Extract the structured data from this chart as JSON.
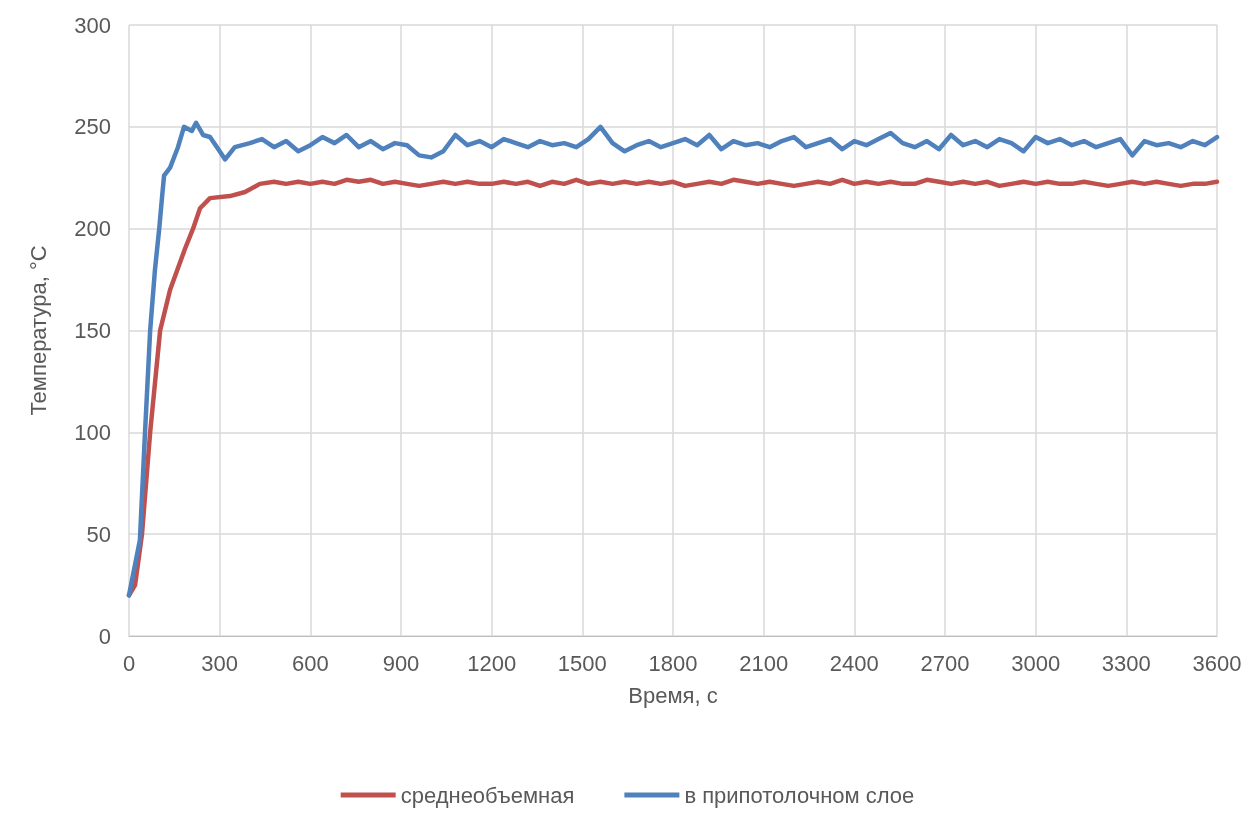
{
  "chart_data": {
    "type": "line",
    "xlabel": "Время, с",
    "ylabel": "Температура, °C",
    "xlim": [
      0,
      3600
    ],
    "xticks": [
      0,
      300,
      600,
      900,
      1200,
      1500,
      1800,
      2100,
      2400,
      2700,
      3000,
      3300,
      3600
    ],
    "ylim": [
      0,
      300
    ],
    "yticks": [
      0,
      50,
      100,
      150,
      200,
      250,
      300
    ],
    "grid": true,
    "legend": "bottom",
    "marker": "none",
    "line_style": "solid",
    "series": [
      {
        "name": "среднеобъемная",
        "color": "#c0504d",
        "x": [
          0,
          20,
          43,
          70,
          103,
          136,
          185,
          212,
          235,
          268,
          334,
          384,
          433,
          480,
          520,
          560,
          600,
          640,
          680,
          720,
          760,
          800,
          840,
          880,
          920,
          960,
          1000,
          1040,
          1080,
          1120,
          1160,
          1200,
          1240,
          1280,
          1320,
          1360,
          1400,
          1440,
          1480,
          1520,
          1560,
          1600,
          1640,
          1680,
          1720,
          1760,
          1800,
          1840,
          1880,
          1920,
          1960,
          2000,
          2040,
          2080,
          2120,
          2160,
          2200,
          2240,
          2280,
          2320,
          2360,
          2400,
          2440,
          2480,
          2520,
          2560,
          2600,
          2640,
          2680,
          2720,
          2760,
          2800,
          2840,
          2880,
          2920,
          2960,
          3000,
          3040,
          3080,
          3120,
          3160,
          3200,
          3240,
          3280,
          3320,
          3360,
          3400,
          3440,
          3480,
          3520,
          3560,
          3600
        ],
        "values": [
          20,
          25,
          50,
          100,
          150,
          170,
          190,
          200,
          210,
          215,
          216,
          218,
          222,
          223,
          222,
          223,
          222,
          223,
          222,
          224,
          223,
          224,
          222,
          223,
          222,
          221,
          222,
          223,
          222,
          223,
          222,
          222,
          223,
          222,
          223,
          221,
          223,
          222,
          224,
          222,
          223,
          222,
          223,
          222,
          223,
          222,
          223,
          221,
          222,
          223,
          222,
          224,
          223,
          222,
          223,
          222,
          221,
          222,
          223,
          222,
          224,
          222,
          223,
          222,
          223,
          222,
          222,
          224,
          223,
          222,
          223,
          222,
          223,
          221,
          222,
          223,
          222,
          223,
          222,
          222,
          223,
          222,
          221,
          222,
          223,
          222,
          223,
          222,
          221,
          222,
          222,
          223
        ]
      },
      {
        "name": "в припотолочном слое",
        "color": "#4f81bd",
        "x": [
          0,
          36,
          53,
          70,
          86,
          100,
          109,
          116,
          136,
          162,
          182,
          208,
          222,
          245,
          268,
          300,
          318,
          350,
          400,
          440,
          480,
          520,
          560,
          600,
          640,
          680,
          720,
          760,
          800,
          840,
          880,
          920,
          960,
          1000,
          1040,
          1080,
          1120,
          1160,
          1200,
          1240,
          1280,
          1320,
          1360,
          1400,
          1440,
          1480,
          1520,
          1560,
          1600,
          1640,
          1680,
          1720,
          1760,
          1800,
          1840,
          1880,
          1920,
          1960,
          2000,
          2040,
          2080,
          2120,
          2160,
          2200,
          2240,
          2280,
          2320,
          2360,
          2400,
          2440,
          2480,
          2520,
          2560,
          2600,
          2640,
          2680,
          2720,
          2760,
          2800,
          2840,
          2880,
          2920,
          2960,
          3000,
          3040,
          3080,
          3120,
          3160,
          3200,
          3240,
          3280,
          3320,
          3360,
          3400,
          3440,
          3480,
          3520,
          3560,
          3600
        ],
        "values": [
          20,
          47,
          100,
          150,
          180,
          200,
          215,
          226,
          230,
          240,
          250,
          248,
          252,
          246,
          245,
          238,
          234,
          240,
          242,
          244,
          240,
          243,
          238,
          241,
          245,
          242,
          246,
          240,
          243,
          239,
          242,
          241,
          236,
          235,
          238,
          246,
          241,
          243,
          240,
          244,
          242,
          240,
          243,
          241,
          242,
          240,
          244,
          250,
          242,
          238,
          241,
          243,
          240,
          242,
          244,
          241,
          246,
          239,
          243,
          241,
          242,
          240,
          243,
          245,
          240,
          242,
          244,
          239,
          243,
          241,
          244,
          247,
          242,
          240,
          243,
          239,
          246,
          241,
          243,
          240,
          244,
          242,
          238,
          245,
          242,
          244,
          241,
          243,
          240,
          242,
          244,
          236,
          243,
          241,
          242,
          240,
          243,
          241,
          245
        ]
      }
    ]
  }
}
